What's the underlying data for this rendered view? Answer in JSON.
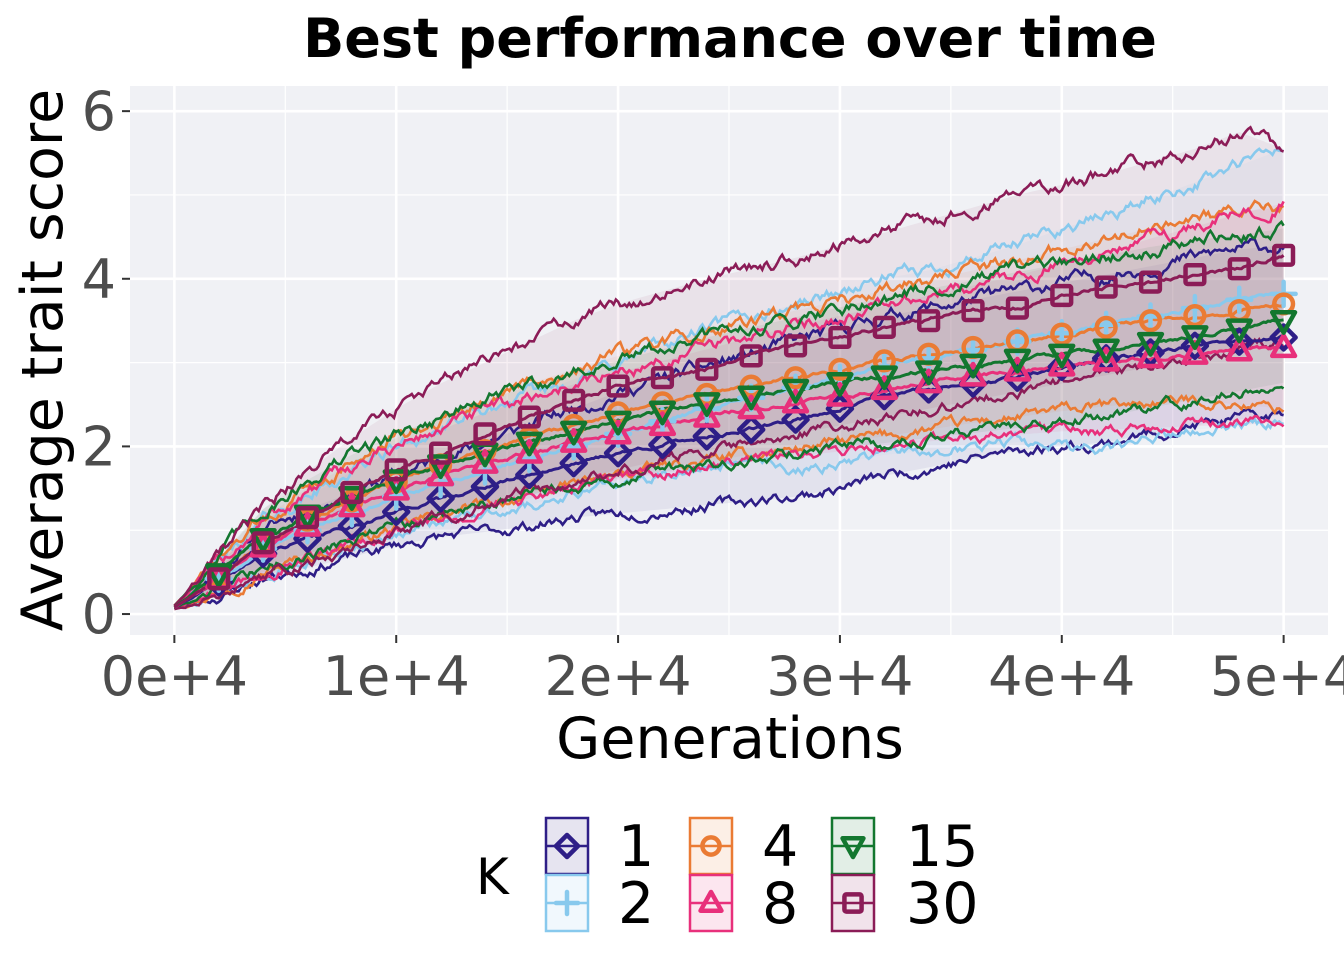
{
  "chart_data": {
    "type": "line",
    "title": "Best performance over time",
    "xlabel": "Generations",
    "ylabel": "Average trait score",
    "xlim": [
      -2000,
      52000
    ],
    "ylim": [
      -0.25,
      6.3
    ],
    "x_ticks": [
      0,
      10000,
      20000,
      30000,
      40000,
      50000
    ],
    "x_tick_labels": [
      "0e+4",
      "1e+4",
      "2e+4",
      "3e+4",
      "4e+4",
      "5e+4"
    ],
    "y_ticks": [
      0,
      2,
      4,
      6
    ],
    "y_tick_labels": [
      "0",
      "2",
      "4",
      "6"
    ],
    "grid": true,
    "legend": {
      "title": "K",
      "position": "bottom"
    },
    "x": [
      0,
      2000,
      4000,
      6000,
      8000,
      10000,
      12000,
      14000,
      16000,
      18000,
      20000,
      22000,
      24000,
      26000,
      28000,
      30000,
      32000,
      34000,
      36000,
      38000,
      40000,
      42000,
      44000,
      46000,
      48000,
      50000
    ],
    "series": [
      {
        "name": "1",
        "color": "#2e1e87",
        "marker": "diamond",
        "values": [
          0.08,
          0.38,
          0.72,
          0.9,
          1.05,
          1.22,
          1.38,
          1.52,
          1.66,
          1.8,
          1.92,
          2.02,
          2.12,
          2.2,
          2.32,
          2.45,
          2.6,
          2.68,
          2.75,
          2.82,
          2.95,
          3.05,
          3.12,
          3.2,
          3.25,
          3.3
        ],
        "lower": [
          0.06,
          0.22,
          0.42,
          0.55,
          0.68,
          0.82,
          0.92,
          0.98,
          1.05,
          1.15,
          1.2,
          1.25,
          1.3,
          1.35,
          1.4,
          1.5,
          1.65,
          1.75,
          1.85,
          1.95,
          2.0,
          2.05,
          2.15,
          2.25,
          2.32,
          2.38
        ],
        "upper": [
          0.1,
          0.55,
          1.0,
          1.25,
          1.45,
          1.65,
          1.85,
          2.05,
          2.25,
          2.45,
          2.65,
          2.8,
          2.95,
          3.1,
          3.25,
          3.4,
          3.55,
          3.65,
          3.75,
          3.85,
          3.95,
          4.05,
          4.15,
          4.25,
          4.35,
          4.4
        ]
      },
      {
        "name": "2",
        "color": "#88c9ed",
        "marker": "plus",
        "values": [
          0.08,
          0.42,
          0.78,
          1.0,
          1.2,
          1.4,
          1.55,
          1.7,
          1.85,
          2.0,
          2.15,
          2.3,
          2.45,
          2.58,
          2.7,
          2.82,
          2.95,
          3.05,
          3.15,
          3.25,
          3.35,
          3.45,
          3.55,
          3.65,
          3.75,
          3.82
        ],
        "lower": [
          0.06,
          0.25,
          0.45,
          0.6,
          0.75,
          0.95,
          1.1,
          1.2,
          1.3,
          1.45,
          1.55,
          1.65,
          1.75,
          1.85,
          1.7,
          1.8,
          1.9,
          1.95,
          2.0,
          2.05,
          2.0,
          1.95,
          2.1,
          2.2,
          2.25,
          2.3
        ],
        "upper": [
          0.1,
          0.6,
          1.1,
          1.4,
          1.7,
          2.0,
          2.2,
          2.4,
          2.6,
          2.8,
          3.0,
          3.2,
          3.4,
          3.55,
          3.7,
          3.85,
          4.0,
          4.1,
          4.25,
          4.4,
          4.6,
          4.75,
          4.95,
          5.15,
          5.35,
          5.55
        ]
      },
      {
        "name": "4",
        "color": "#ea7b34",
        "marker": "circle",
        "values": [
          0.08,
          0.45,
          0.85,
          1.12,
          1.35,
          1.58,
          1.78,
          1.95,
          2.1,
          2.25,
          2.4,
          2.52,
          2.62,
          2.72,
          2.82,
          2.92,
          3.02,
          3.1,
          3.18,
          3.26,
          3.34,
          3.42,
          3.5,
          3.56,
          3.62,
          3.7
        ],
        "lower": [
          0.06,
          0.28,
          0.5,
          0.68,
          0.85,
          1.02,
          1.18,
          1.3,
          1.42,
          1.55,
          1.65,
          1.75,
          1.82,
          1.9,
          1.98,
          2.05,
          2.12,
          2.2,
          2.28,
          2.35,
          2.42,
          2.48,
          2.52,
          2.55,
          2.5,
          2.45
        ],
        "upper": [
          0.1,
          0.62,
          1.15,
          1.5,
          1.8,
          2.1,
          2.35,
          2.55,
          2.75,
          2.92,
          3.08,
          3.22,
          3.36,
          3.5,
          3.62,
          3.74,
          3.86,
          3.98,
          4.1,
          4.22,
          4.35,
          4.48,
          4.6,
          4.7,
          4.8,
          4.85
        ]
      },
      {
        "name": "8",
        "color": "#e8307b",
        "marker": "triangle-up",
        "values": [
          0.08,
          0.42,
          0.8,
          1.05,
          1.28,
          1.48,
          1.65,
          1.8,
          1.92,
          2.05,
          2.15,
          2.25,
          2.35,
          2.45,
          2.52,
          2.6,
          2.68,
          2.76,
          2.84,
          2.9,
          2.96,
          3.02,
          3.06,
          3.1,
          3.14,
          3.18
        ],
        "lower": [
          0.06,
          0.26,
          0.48,
          0.65,
          0.8,
          0.98,
          1.12,
          1.25,
          1.38,
          1.5,
          1.6,
          1.68,
          1.75,
          1.82,
          1.88,
          1.94,
          2.0,
          2.06,
          2.1,
          2.14,
          2.18,
          2.2,
          2.22,
          2.24,
          2.26,
          2.28
        ],
        "upper": [
          0.1,
          0.6,
          1.1,
          1.45,
          1.75,
          2.0,
          2.2,
          2.4,
          2.58,
          2.74,
          2.88,
          3.02,
          3.16,
          3.3,
          3.44,
          3.56,
          3.68,
          3.8,
          3.92,
          4.04,
          4.18,
          4.32,
          4.48,
          4.62,
          4.78,
          4.9
        ]
      },
      {
        "name": "15",
        "color": "#13772f",
        "marker": "triangle-down",
        "values": [
          0.08,
          0.48,
          0.9,
          1.18,
          1.4,
          1.6,
          1.78,
          1.92,
          2.05,
          2.18,
          2.3,
          2.42,
          2.52,
          2.6,
          2.68,
          2.76,
          2.84,
          2.9,
          2.98,
          3.04,
          3.1,
          3.16,
          3.24,
          3.32,
          3.4,
          3.5
        ],
        "lower": [
          0.06,
          0.3,
          0.55,
          0.72,
          0.88,
          1.05,
          1.18,
          1.3,
          1.42,
          1.52,
          1.62,
          1.7,
          1.78,
          1.86,
          1.92,
          1.98,
          2.04,
          2.1,
          2.16,
          2.22,
          2.28,
          2.36,
          2.46,
          2.56,
          2.66,
          2.76
        ],
        "upper": [
          0.1,
          0.68,
          1.25,
          1.6,
          1.9,
          2.15,
          2.35,
          2.55,
          2.72,
          2.88,
          3.02,
          3.16,
          3.3,
          3.42,
          3.54,
          3.66,
          3.78,
          3.88,
          3.98,
          4.08,
          4.18,
          4.28,
          4.38,
          4.46,
          4.52,
          4.6
        ]
      },
      {
        "name": "30",
        "color": "#8b1c57",
        "marker": "square",
        "values": [
          0.08,
          0.42,
          0.85,
          1.15,
          1.45,
          1.72,
          1.92,
          2.15,
          2.35,
          2.55,
          2.72,
          2.82,
          2.92,
          3.08,
          3.2,
          3.3,
          3.42,
          3.5,
          3.62,
          3.65,
          3.8,
          3.9,
          3.96,
          4.05,
          4.12,
          4.28
        ],
        "lower": [
          0.06,
          0.24,
          0.45,
          0.62,
          0.8,
          1.0,
          1.15,
          1.3,
          1.45,
          1.6,
          1.72,
          1.84,
          1.95,
          2.05,
          2.15,
          2.25,
          2.35,
          2.45,
          2.55,
          2.65,
          2.75,
          2.85,
          2.95,
          3.05,
          3.15,
          3.25
        ],
        "upper": [
          0.1,
          0.65,
          1.25,
          1.7,
          2.1,
          2.45,
          2.75,
          3.0,
          3.25,
          3.5,
          3.7,
          3.85,
          4.0,
          4.12,
          4.25,
          4.4,
          4.55,
          4.7,
          4.85,
          5.0,
          5.12,
          5.25,
          5.4,
          5.55,
          5.75,
          5.55
        ]
      }
    ]
  }
}
